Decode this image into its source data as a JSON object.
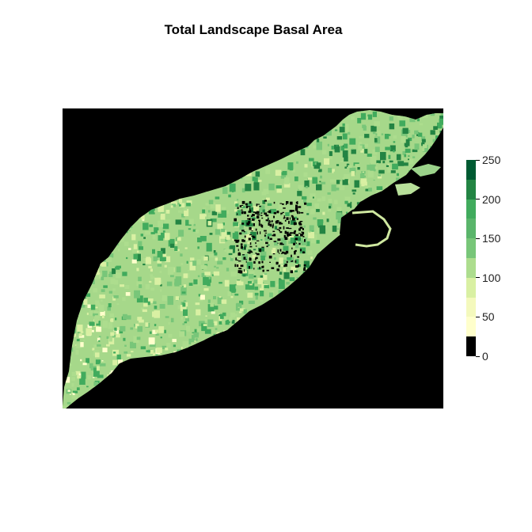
{
  "title": "Total Landscape Basal Area",
  "legend": {
    "min": 0,
    "max": 250,
    "ticks": [
      "0",
      "50",
      "100",
      "150",
      "200",
      "250"
    ],
    "tick_values": [
      0,
      50,
      100,
      150,
      200,
      250
    ],
    "color_classes": [
      {
        "from": 0,
        "to": 25,
        "color": "#000000"
      },
      {
        "from": 25,
        "to": 50,
        "color": "#ffffcc"
      },
      {
        "from": 50,
        "to": 75,
        "color": "#f4f9bd"
      },
      {
        "from": 75,
        "to": 100,
        "color": "#d9f0a3"
      },
      {
        "from": 100,
        "to": 125,
        "color": "#addd8e"
      },
      {
        "from": 125,
        "to": 150,
        "color": "#78c679"
      },
      {
        "from": 150,
        "to": 175,
        "color": "#5ab56b"
      },
      {
        "from": 175,
        "to": 200,
        "color": "#41ab5d"
      },
      {
        "from": 200,
        "to": 225,
        "color": "#238443"
      },
      {
        "from": 225,
        "to": 250,
        "color": "#005a32"
      }
    ]
  },
  "map": {
    "background": "#000000",
    "landscape_palette": [
      "#ffffcc",
      "#d9f0a3",
      "#addd8e",
      "#78c679",
      "#41ab5d",
      "#238443"
    ]
  }
}
